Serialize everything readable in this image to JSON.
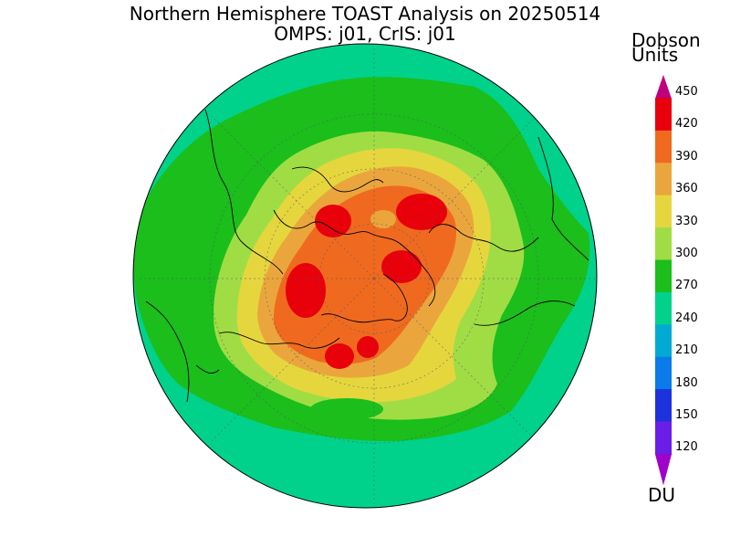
{
  "title": {
    "line1": "Northern Hemisphere TOAST Analysis on 20250514",
    "line2": "OMPS: j01, CrIS: j01"
  },
  "colorbar": {
    "units_line1": "Dobson",
    "units_line2": "Units",
    "bottom_label": "DU",
    "ticks": [
      "450",
      "420",
      "390",
      "360",
      "330",
      "300",
      "270",
      "240",
      "210",
      "180",
      "150",
      "120"
    ],
    "colors": [
      "#c0007a",
      "#e8000a",
      "#ef6a1f",
      "#eaa63c",
      "#e6d63d",
      "#a0dd45",
      "#1bbe1b",
      "#00d28c",
      "#00aad2",
      "#0a7be8",
      "#1e32dc",
      "#6a1ee6",
      "#a000c8"
    ]
  },
  "map": {
    "projection": "north polar stereographic",
    "field": "total column ozone",
    "palette": {
      "ocean_outer": "#00d28c",
      "band_270": "#1bbe1b",
      "band_300": "#a0dd45",
      "band_330": "#e6d63d",
      "band_360": "#eaa63c",
      "band_390": "#ef6a1f",
      "band_420": "#e8000a"
    }
  }
}
